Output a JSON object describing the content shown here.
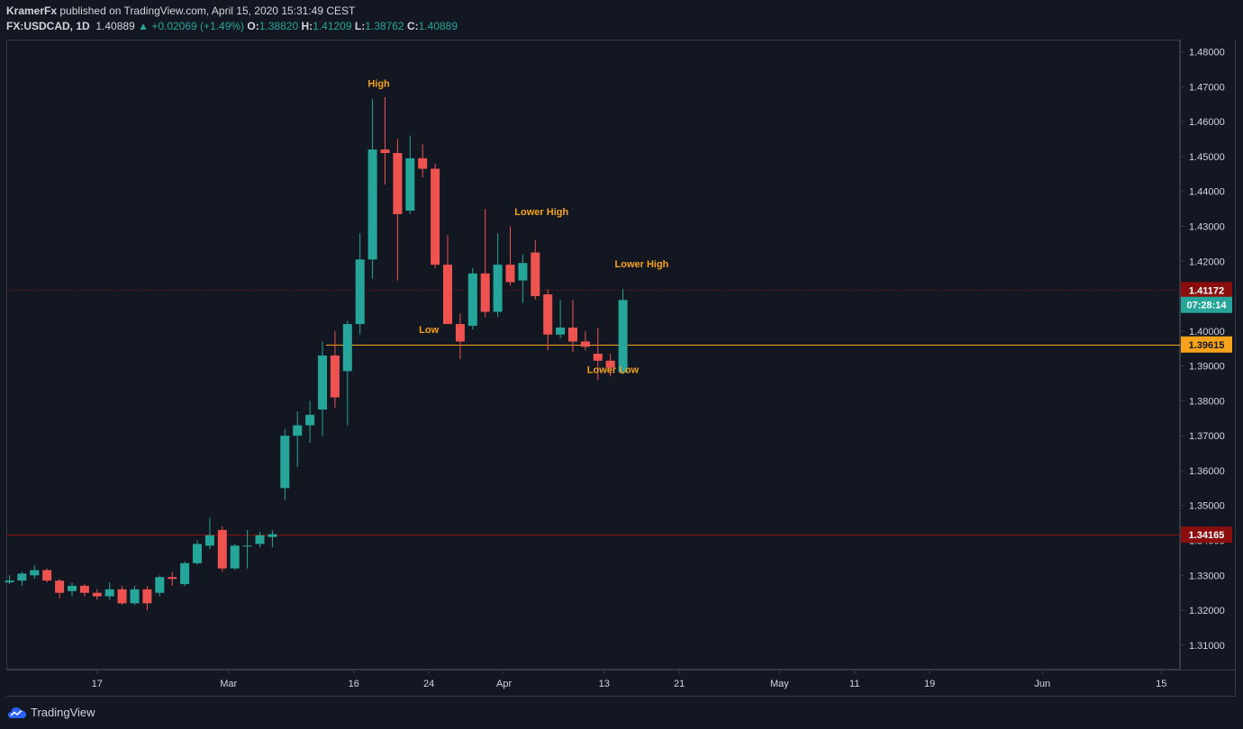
{
  "header": {
    "author": "KramerFx",
    "published_text": "published on TradingView.com, April 15, 2020 15:31:49 CEST",
    "symbol": "FX:USDCAD, 1D",
    "last": "1.40889",
    "change": "+0.02069 (+1.49%)",
    "o_label": "O:",
    "o_value": "1.38820",
    "h_label": "H:",
    "h_value": "1.41209",
    "l_label": "L:",
    "l_value": "1.38762",
    "c_label": "C:",
    "c_value": "1.40889"
  },
  "footer": {
    "brand": "TradingView"
  },
  "colors": {
    "background": "#131722",
    "up": "#26a69a",
    "down": "#ef5350",
    "annotation": "#f7a21b",
    "level_red": "#8b0e0e",
    "level_orange": "#f7a21b"
  },
  "chart_data": {
    "type": "candlestick",
    "ylim": [
      1.303,
      1.4835
    ],
    "y_ticks": [
      "1.48000",
      "1.47000",
      "1.46000",
      "1.45000",
      "1.44000",
      "1.43000",
      "1.42000",
      "1.41000",
      "1.40000",
      "1.39000",
      "1.38000",
      "1.37000",
      "1.36000",
      "1.35000",
      "1.34000",
      "1.33000",
      "1.32000",
      "1.31000"
    ],
    "y_tick_values": [
      1.48,
      1.47,
      1.46,
      1.45,
      1.44,
      1.43,
      1.42,
      1.41,
      1.4,
      1.39,
      1.38,
      1.37,
      1.36,
      1.35,
      1.34,
      1.33,
      1.32,
      1.31
    ],
    "x_ticks": [
      {
        "label": "17",
        "slot": 7
      },
      {
        "label": "Mar",
        "slot": 17.5
      },
      {
        "label": "16",
        "slot": 27.5
      },
      {
        "label": "24",
        "slot": 33.5
      },
      {
        "label": "Apr",
        "slot": 39.5
      },
      {
        "label": "13",
        "slot": 47.5
      },
      {
        "label": "21",
        "slot": 53.5
      },
      {
        "label": "May",
        "slot": 61.5
      },
      {
        "label": "11",
        "slot": 67.5
      },
      {
        "label": "19",
        "slot": 73.5
      },
      {
        "label": "Jun",
        "slot": 82.5
      },
      {
        "label": "15",
        "slot": 92
      }
    ],
    "candles": [
      {
        "o": 1.328,
        "h": 1.33,
        "l": 1.3275,
        "c": 1.3285
      },
      {
        "o": 1.3285,
        "h": 1.331,
        "l": 1.327,
        "c": 1.3305
      },
      {
        "o": 1.33,
        "h": 1.333,
        "l": 1.329,
        "c": 1.3315
      },
      {
        "o": 1.3315,
        "h": 1.332,
        "l": 1.328,
        "c": 1.3285
      },
      {
        "o": 1.3285,
        "h": 1.329,
        "l": 1.3235,
        "c": 1.325
      },
      {
        "o": 1.3255,
        "h": 1.328,
        "l": 1.324,
        "c": 1.327
      },
      {
        "o": 1.327,
        "h": 1.3275,
        "l": 1.324,
        "c": 1.325
      },
      {
        "o": 1.325,
        "h": 1.326,
        "l": 1.323,
        "c": 1.324
      },
      {
        "o": 1.324,
        "h": 1.328,
        "l": 1.323,
        "c": 1.326
      },
      {
        "o": 1.326,
        "h": 1.327,
        "l": 1.3215,
        "c": 1.322
      },
      {
        "o": 1.322,
        "h": 1.327,
        "l": 1.3215,
        "c": 1.326
      },
      {
        "o": 1.326,
        "h": 1.327,
        "l": 1.32,
        "c": 1.322
      },
      {
        "o": 1.325,
        "h": 1.33,
        "l": 1.324,
        "c": 1.3295
      },
      {
        "o": 1.3295,
        "h": 1.331,
        "l": 1.327,
        "c": 1.329
      },
      {
        "o": 1.3275,
        "h": 1.334,
        "l": 1.327,
        "c": 1.3335
      },
      {
        "o": 1.3335,
        "h": 1.34,
        "l": 1.333,
        "c": 1.339
      },
      {
        "o": 1.3385,
        "h": 1.3465,
        "l": 1.3375,
        "c": 1.3415
      },
      {
        "o": 1.343,
        "h": 1.344,
        "l": 1.331,
        "c": 1.332
      },
      {
        "o": 1.332,
        "h": 1.339,
        "l": 1.3315,
        "c": 1.3385
      },
      {
        "o": 1.3385,
        "h": 1.343,
        "l": 1.332,
        "c": 1.3385
      },
      {
        "o": 1.339,
        "h": 1.3425,
        "l": 1.338,
        "c": 1.3415
      },
      {
        "o": 1.341,
        "h": 1.343,
        "l": 1.338,
        "c": 1.3418
      },
      {
        "o": 1.355,
        "h": 1.372,
        "l": 1.3515,
        "c": 1.37
      },
      {
        "o": 1.37,
        "h": 1.377,
        "l": 1.361,
        "c": 1.373
      },
      {
        "o": 1.373,
        "h": 1.38,
        "l": 1.368,
        "c": 1.376
      },
      {
        "o": 1.3775,
        "h": 1.397,
        "l": 1.37,
        "c": 1.393
      },
      {
        "o": 1.393,
        "h": 1.4,
        "l": 1.378,
        "c": 1.381
      },
      {
        "o": 1.3885,
        "h": 1.403,
        "l": 1.373,
        "c": 1.402
      },
      {
        "o": 1.402,
        "h": 1.428,
        "l": 1.399,
        "c": 1.4205
      },
      {
        "o": 1.4205,
        "h": 1.4665,
        "l": 1.415,
        "c": 1.452
      },
      {
        "o": 1.452,
        "h": 1.467,
        "l": 1.442,
        "c": 1.451
      },
      {
        "o": 1.451,
        "h": 1.455,
        "l": 1.4145,
        "c": 1.4335
      },
      {
        "o": 1.4345,
        "h": 1.456,
        "l": 1.4335,
        "c": 1.4495
      },
      {
        "o": 1.4495,
        "h": 1.4535,
        "l": 1.444,
        "c": 1.4465
      },
      {
        "o": 1.4465,
        "h": 1.448,
        "l": 1.418,
        "c": 1.419
      },
      {
        "o": 1.419,
        "h": 1.4275,
        "l": 1.402,
        "c": 1.402
      },
      {
        "o": 1.402,
        "h": 1.405,
        "l": 1.392,
        "c": 1.397
      },
      {
        "o": 1.4015,
        "h": 1.418,
        "l": 1.4005,
        "c": 1.4165
      },
      {
        "o": 1.4165,
        "h": 1.435,
        "l": 1.404,
        "c": 1.4055
      },
      {
        "o": 1.4055,
        "h": 1.428,
        "l": 1.404,
        "c": 1.419
      },
      {
        "o": 1.419,
        "h": 1.43,
        "l": 1.413,
        "c": 1.414
      },
      {
        "o": 1.4145,
        "h": 1.422,
        "l": 1.408,
        "c": 1.4195
      },
      {
        "o": 1.4225,
        "h": 1.426,
        "l": 1.409,
        "c": 1.41
      },
      {
        "o": 1.4105,
        "h": 1.412,
        "l": 1.3945,
        "c": 1.399
      },
      {
        "o": 1.399,
        "h": 1.409,
        "l": 1.398,
        "c": 1.401
      },
      {
        "o": 1.401,
        "h": 1.409,
        "l": 1.394,
        "c": 1.397
      },
      {
        "o": 1.397,
        "h": 1.4,
        "l": 1.3945,
        "c": 1.3955
      },
      {
        "o": 1.3935,
        "h": 1.401,
        "l": 1.386,
        "c": 1.3915
      },
      {
        "o": 1.3915,
        "h": 1.3935,
        "l": 1.387,
        "c": 1.3895
      },
      {
        "o": 1.3882,
        "h": 1.4121,
        "l": 1.3876,
        "c": 1.4089
      }
    ],
    "annotations": [
      {
        "text": "High",
        "slot": 29.5,
        "y": 1.47
      },
      {
        "text": "Lower High",
        "slot": 42.5,
        "y": 1.4332
      },
      {
        "text": "Low",
        "slot": 33.5,
        "y": 1.3995
      },
      {
        "text": "Lower High",
        "slot": 50.5,
        "y": 1.4183
      },
      {
        "text": "Lower Low",
        "slot": 48.2,
        "y": 1.388
      }
    ],
    "levels": [
      {
        "value": 1.41172,
        "label": "1.41172",
        "color": "#8b0e0e",
        "style": "dotted"
      },
      {
        "value": 1.39615,
        "label": "1.39615",
        "color": "#f7a21b",
        "style": "solid"
      },
      {
        "value": 1.34165,
        "label": "1.34165",
        "color": "#8b0e0e",
        "style": "solid"
      }
    ],
    "countdown": {
      "label": "07:28:14",
      "value": 1.4075
    }
  }
}
